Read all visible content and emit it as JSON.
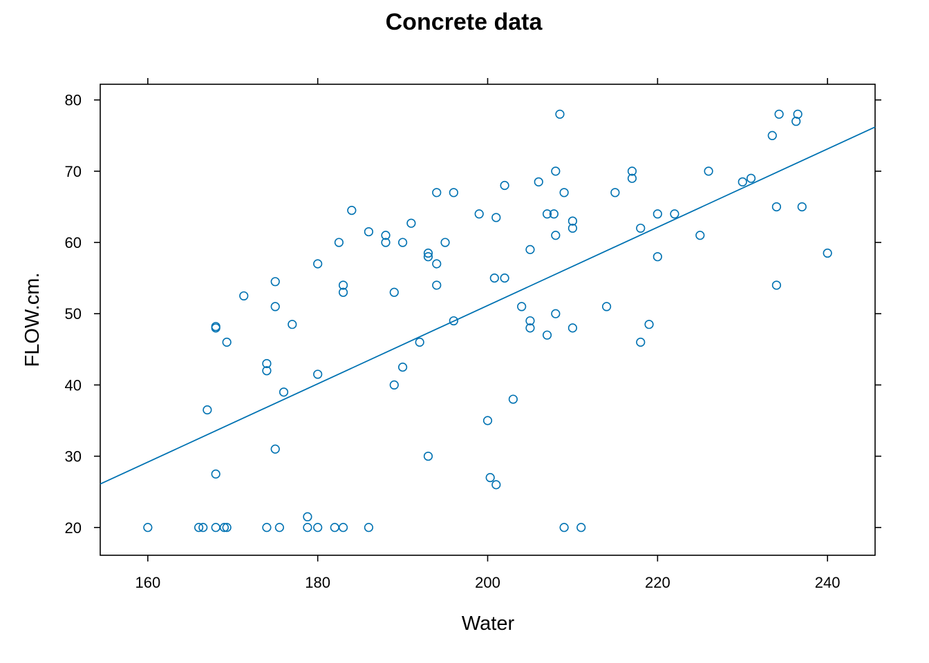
{
  "chart_data": {
    "type": "scatter",
    "title": "Concrete data",
    "xlabel": "Water",
    "ylabel": "FLOW.cm.",
    "xlim": [
      154.4,
      245.6
    ],
    "ylim": [
      16.1,
      82.2
    ],
    "x_ticks": [
      160,
      180,
      200,
      220,
      240
    ],
    "y_ticks": [
      20,
      30,
      40,
      50,
      60,
      70,
      80
    ],
    "grid": false,
    "colors": {
      "points": "#0072b2",
      "line": "#0072b2",
      "axes": "#000000"
    },
    "regression_line": {
      "x": [
        154.4,
        245.6
      ],
      "y": [
        26.1,
        76.2
      ]
    },
    "points": [
      [
        160,
        20
      ],
      [
        166,
        20
      ],
      [
        166.5,
        20
      ],
      [
        168,
        20
      ],
      [
        169,
        20
      ],
      [
        169.3,
        20
      ],
      [
        174,
        20
      ],
      [
        175.5,
        20
      ],
      [
        178.8,
        20
      ],
      [
        180,
        20
      ],
      [
        182,
        20
      ],
      [
        183,
        20
      ],
      [
        186,
        20
      ],
      [
        209,
        20
      ],
      [
        211,
        20
      ],
      [
        178.8,
        21.5
      ],
      [
        201,
        26
      ],
      [
        200.3,
        27
      ],
      [
        168,
        27.5
      ],
      [
        193,
        30
      ],
      [
        175,
        31
      ],
      [
        200,
        35
      ],
      [
        167,
        36.5
      ],
      [
        203,
        38
      ],
      [
        176,
        39
      ],
      [
        189,
        40
      ],
      [
        180,
        41.5
      ],
      [
        174,
        42
      ],
      [
        174,
        43
      ],
      [
        190,
        42.5
      ],
      [
        169.3,
        46
      ],
      [
        192,
        46
      ],
      [
        218,
        46
      ],
      [
        207,
        47
      ],
      [
        168,
        48
      ],
      [
        168,
        48.2
      ],
      [
        205,
        48
      ],
      [
        210,
        48
      ],
      [
        177,
        48.5
      ],
      [
        219,
        48.5
      ],
      [
        196,
        49
      ],
      [
        205,
        49
      ],
      [
        208,
        50
      ],
      [
        175,
        51
      ],
      [
        204,
        51
      ],
      [
        214,
        51
      ],
      [
        171.3,
        52.5
      ],
      [
        183,
        53
      ],
      [
        189,
        53
      ],
      [
        183,
        54
      ],
      [
        194,
        54
      ],
      [
        234,
        54
      ],
      [
        175,
        54.5
      ],
      [
        200.8,
        55
      ],
      [
        202,
        55
      ],
      [
        180,
        57
      ],
      [
        194,
        57
      ],
      [
        193,
        58
      ],
      [
        193,
        58.5
      ],
      [
        220,
        58
      ],
      [
        240,
        58.5
      ],
      [
        205,
        59
      ],
      [
        182.5,
        60
      ],
      [
        188,
        60
      ],
      [
        190,
        60
      ],
      [
        195,
        60
      ],
      [
        188,
        61
      ],
      [
        208,
        61
      ],
      [
        225,
        61
      ],
      [
        186,
        61.5
      ],
      [
        210,
        62
      ],
      [
        218,
        62
      ],
      [
        191,
        62.7
      ],
      [
        210,
        63
      ],
      [
        201,
        63.5
      ],
      [
        199,
        64
      ],
      [
        207,
        64
      ],
      [
        207.8,
        64
      ],
      [
        220,
        64
      ],
      [
        222,
        64
      ],
      [
        184,
        64.5
      ],
      [
        234,
        65
      ],
      [
        237,
        65
      ],
      [
        194,
        67
      ],
      [
        196,
        67
      ],
      [
        209,
        67
      ],
      [
        215,
        67
      ],
      [
        202,
        68
      ],
      [
        206,
        68.5
      ],
      [
        230,
        68.5
      ],
      [
        217,
        69
      ],
      [
        231,
        69
      ],
      [
        208,
        70
      ],
      [
        217,
        70
      ],
      [
        226,
        70
      ],
      [
        233.5,
        75
      ],
      [
        236.3,
        77
      ],
      [
        208.5,
        78
      ],
      [
        234.3,
        78
      ],
      [
        236.5,
        78
      ]
    ]
  }
}
